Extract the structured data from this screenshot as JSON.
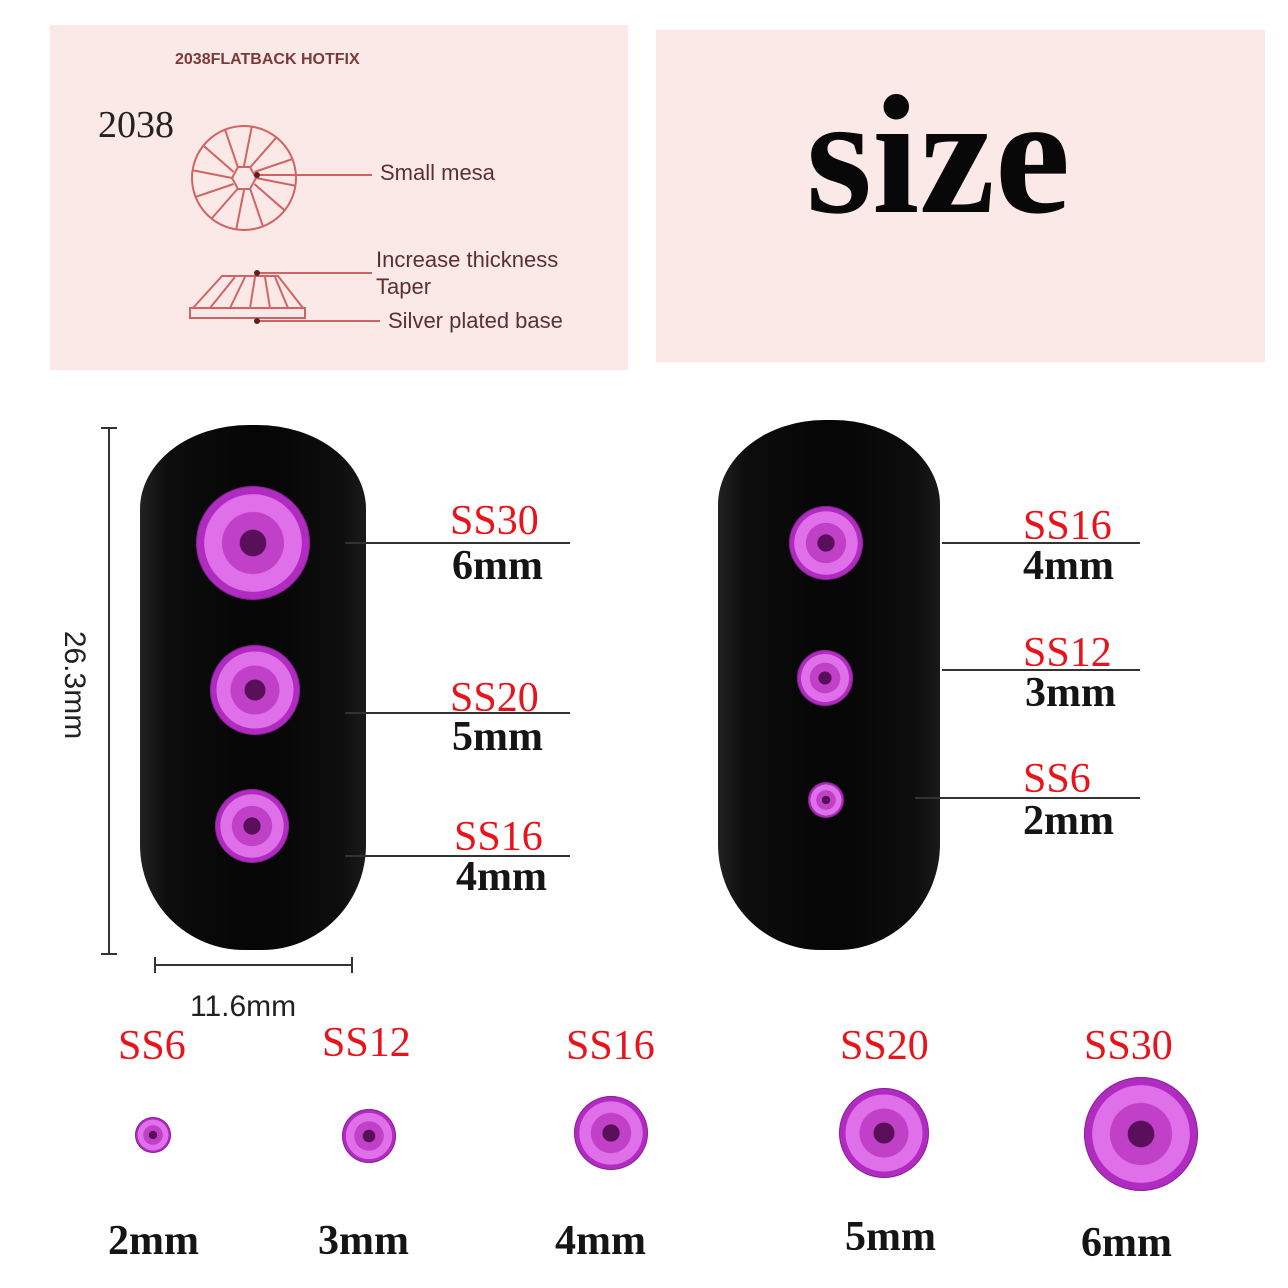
{
  "diagram": {
    "header": "2038FLATBACK HOTFIX",
    "model": "2038",
    "labels": [
      "Small mesa",
      "Increase thickness",
      "Taper",
      "Silver plated base"
    ]
  },
  "title": "size",
  "dimensions": {
    "height": "26.3mm",
    "width": "11.6mm"
  },
  "left_nail": [
    {
      "ss": "SS30",
      "mm": "6mm"
    },
    {
      "ss": "SS20",
      "mm": "5mm"
    },
    {
      "ss": "SS16",
      "mm": "4mm"
    }
  ],
  "right_nail": [
    {
      "ss": "SS16",
      "mm": "4mm"
    },
    {
      "ss": "SS12",
      "mm": "3mm"
    },
    {
      "ss": "SS6",
      "mm": "2mm"
    }
  ],
  "sizes": [
    {
      "ss": "SS6",
      "mm": "2mm"
    },
    {
      "ss": "SS12",
      "mm": "3mm"
    },
    {
      "ss": "SS16",
      "mm": "4mm"
    },
    {
      "ss": "SS20",
      "mm": "5mm"
    },
    {
      "ss": "SS30",
      "mm": "6mm"
    }
  ],
  "colors": {
    "label_red": "#e8141c",
    "panel_pink": "#fbe9e8",
    "gem": "#c040c8"
  }
}
